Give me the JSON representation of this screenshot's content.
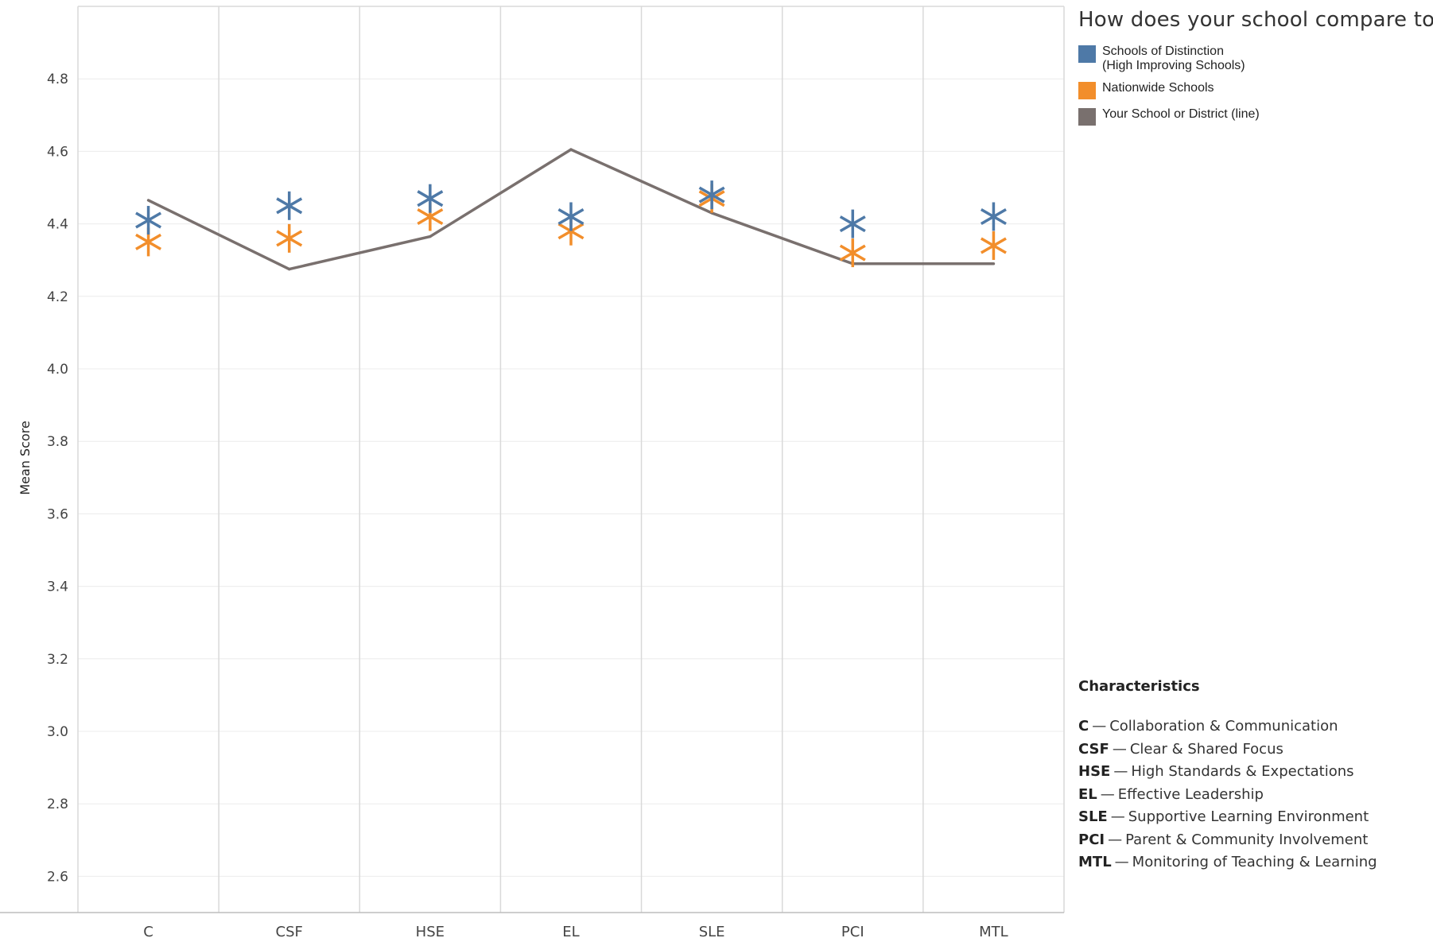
{
  "chart_data": {
    "type": "scatter",
    "title": "",
    "xlabel": "",
    "ylabel": "Mean Score",
    "categories": [
      "C",
      "CSF",
      "HSE",
      "EL",
      "SLE",
      "PCI",
      "MTL"
    ],
    "y_ticks": [
      "2.6",
      "2.8",
      "3.0",
      "3.2",
      "3.4",
      "3.6",
      "3.8",
      "4.0",
      "4.2",
      "4.4",
      "4.6",
      "4.8"
    ],
    "ylim": [
      2.5,
      5.0
    ],
    "grid": true,
    "legend_position": "right",
    "series": [
      {
        "name": "Schools of Distinction\n(High Improving Schools)",
        "mark": "asterisk",
        "color": "#4e79a7",
        "values": [
          4.41,
          4.45,
          4.47,
          4.42,
          4.48,
          4.4,
          4.42
        ]
      },
      {
        "name": "Nationwide Schools",
        "mark": "asterisk",
        "color": "#f28e2b",
        "values": [
          4.35,
          4.36,
          4.42,
          4.38,
          4.47,
          4.32,
          4.34
        ]
      },
      {
        "name": "Your School or District (line)",
        "mark": "line",
        "color": "#79706e",
        "values": [
          4.465,
          4.275,
          4.365,
          4.605,
          4.43,
          4.29,
          4.29
        ]
      }
    ]
  },
  "legend": {
    "title": "How does your school compare to:",
    "items": [
      {
        "label": "Schools of Distinction\n(High Improving Schools)",
        "color": "#4e79a7"
      },
      {
        "label": "Nationwide Schools",
        "color": "#f28e2b"
      },
      {
        "label": "Your School or District (line)",
        "color": "#79706e"
      }
    ]
  },
  "characteristics": {
    "title": "Characteristics",
    "separator": "—",
    "items": [
      {
        "abbr": "C",
        "desc": "Collaboration & Communication"
      },
      {
        "abbr": "CSF",
        "desc": "Clear & Shared Focus"
      },
      {
        "abbr": "HSE",
        "desc": "High Standards & Expectations"
      },
      {
        "abbr": "EL",
        "desc": "Effective Leadership"
      },
      {
        "abbr": "SLE",
        "desc": "Supportive Learning Environment"
      },
      {
        "abbr": "PCI",
        "desc": "Parent & Community Involvement"
      },
      {
        "abbr": "MTL",
        "desc": "Monitoring of Teaching & Learning"
      }
    ]
  }
}
